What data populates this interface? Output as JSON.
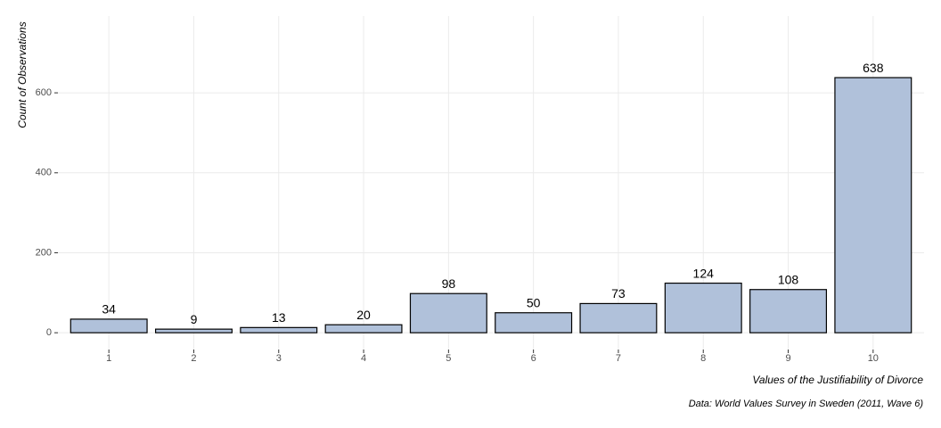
{
  "chart_data": {
    "type": "bar",
    "x_label": "Values of the Justifiability of Divorce",
    "y_label": "Count of Observations",
    "caption": "Data: World Values Survey in Sweden (2011, Wave 6)",
    "categories": [
      "1",
      "2",
      "3",
      "4",
      "5",
      "6",
      "7",
      "8",
      "9",
      "10"
    ],
    "values": [
      34,
      9,
      13,
      20,
      98,
      50,
      73,
      124,
      108,
      638
    ],
    "color": "#b0c1da",
    "ylim": [
      -42,
      792
    ],
    "yticks": [
      0,
      200,
      400,
      600
    ],
    "grid": true
  }
}
